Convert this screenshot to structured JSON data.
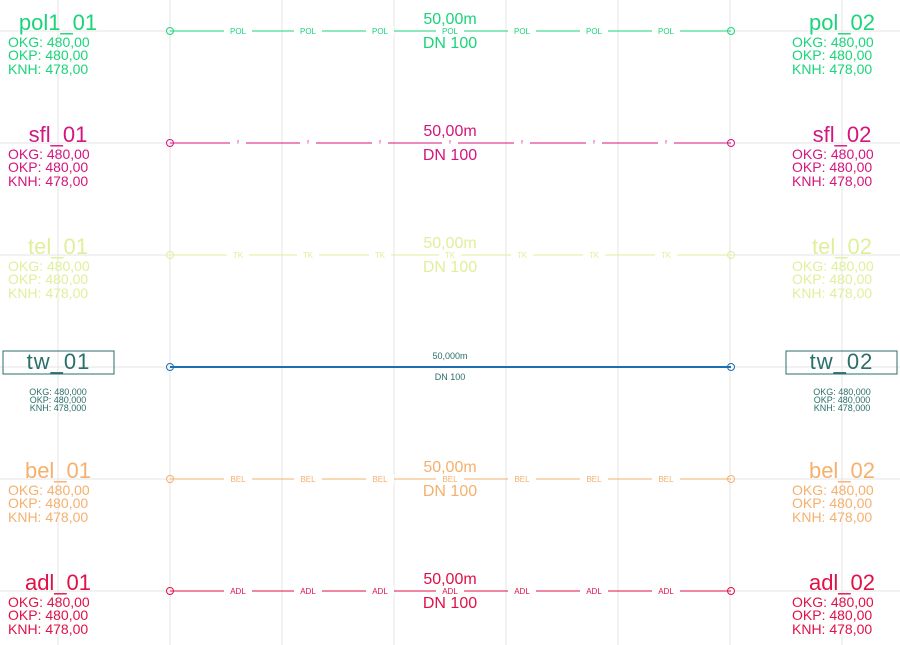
{
  "rows": [
    {
      "id": "pol",
      "color": "#1ad47a",
      "label_text": "POL",
      "left": {
        "name": "pol1_01",
        "okg": "OKG: 480,00",
        "okp": "OKP: 480,00",
        "knh": "KNH: 478,00"
      },
      "right": {
        "name": "pol_02",
        "okg": "OKG: 480,00",
        "okp": "OKP: 480,00",
        "knh": "KNH: 478,00"
      },
      "length": "50,00m",
      "dn": "DN 100"
    },
    {
      "id": "sfl",
      "color": "#d4157e",
      "label_text": "ᶠ",
      "left": {
        "name": "sfl_01",
        "okg": "OKG: 480,00",
        "okp": "OKP: 480,00",
        "knh": "KNH: 478,00"
      },
      "right": {
        "name": "sfl_02",
        "okg": "OKG: 480,00",
        "okp": "OKP: 480,00",
        "knh": "KNH: 478,00"
      },
      "length": "50,00m",
      "dn": "DN 100"
    },
    {
      "id": "tel",
      "color": "#dff09a",
      "label_text": "TK",
      "left": {
        "name": "tel_01",
        "okg": "OKG: 480,00",
        "okp": "OKP: 480,00",
        "knh": "KNH: 478,00"
      },
      "right": {
        "name": "tel_02",
        "okg": "OKG: 480,00",
        "okp": "OKP: 480,00",
        "knh": "KNH: 478,00"
      },
      "length": "50,00m",
      "dn": "DN 100"
    },
    {
      "id": "tw",
      "color": "#2a6f6a",
      "line_color": "#1c6fb0",
      "label_text": "",
      "left": {
        "name": "tw_01",
        "okg": "OKG: 480,000",
        "okp": "OKP: 480,000",
        "knh": "KNH: 478,000"
      },
      "right": {
        "name": "tw_02",
        "okg": "OKG: 480,000",
        "okp": "OKP: 480,000",
        "knh": "KNH: 478,000"
      },
      "length": "50,000m",
      "dn": "DN 100"
    },
    {
      "id": "bel",
      "color": "#f5b06e",
      "label_text": "BEL",
      "left": {
        "name": "bel_01",
        "okg": "OKG: 480,00",
        "okp": "OKP: 480,00",
        "knh": "KNH: 478,00"
      },
      "right": {
        "name": "bel_02",
        "okg": "OKG: 480,00",
        "okp": "OKP: 480,00",
        "knh": "KNH: 478,00"
      },
      "length": "50,00m",
      "dn": "DN 100"
    },
    {
      "id": "adl",
      "color": "#e01048",
      "label_text": "ADL",
      "left": {
        "name": "adl_01",
        "okg": "OKG: 480,00",
        "okp": "OKP: 480,00",
        "knh": "KNH: 478,00"
      },
      "right": {
        "name": "adl_02",
        "okg": "OKG: 480,00",
        "okp": "OKP: 480,00",
        "knh": "KNH: 478,00"
      },
      "length": "50,00m",
      "dn": "DN 100"
    }
  ]
}
